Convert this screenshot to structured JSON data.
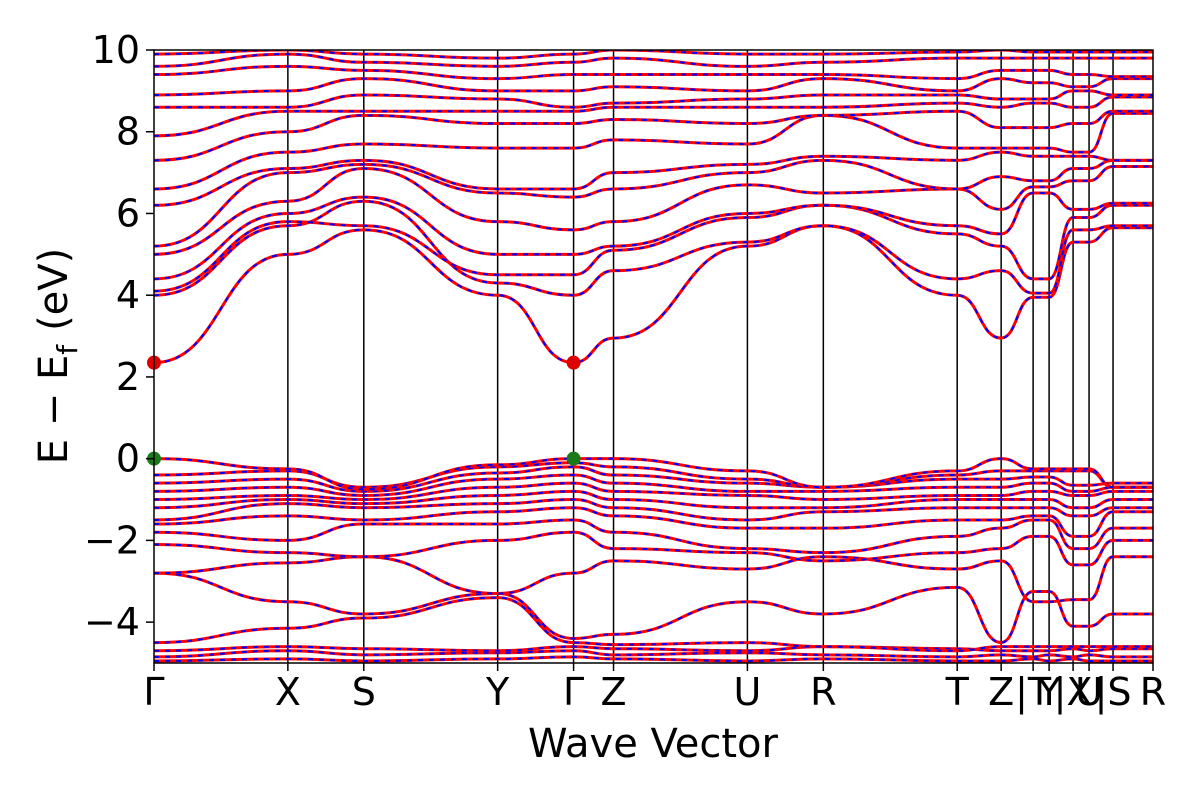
{
  "chart_data": {
    "type": "line",
    "xlabel": "Wave Vector",
    "ylabel_main": "E − E",
    "ylabel_sub": "f",
    "ylabel_unit": "(eV)",
    "ylim": [
      -5,
      10
    ],
    "yticks": [
      -4,
      -2,
      0,
      2,
      4,
      6,
      8,
      10
    ],
    "ytick_labels": [
      "−4",
      "−2",
      "0",
      "2",
      "4",
      "6",
      "8",
      "10"
    ],
    "xlim": [
      0,
      1
    ],
    "kpoints": [
      {
        "label": "Γ",
        "x": 0.0
      },
      {
        "label": "X",
        "x": 0.134
      },
      {
        "label": "S",
        "x": 0.21
      },
      {
        "label": "Y",
        "x": 0.344
      },
      {
        "label": "Γ",
        "x": 0.42
      },
      {
        "label": "Z",
        "x": 0.46
      },
      {
        "label": "U",
        "x": 0.594
      },
      {
        "label": "R",
        "x": 0.67
      },
      {
        "label": "T",
        "x": 0.804
      },
      {
        "label": "Z",
        "x": 0.848
      },
      {
        "label": "|T",
        "x": 0.88
      },
      {
        "label": "Y",
        "x": 0.896
      },
      {
        "label": "|X",
        "x": 0.92
      },
      {
        "label": "U",
        "x": 0.936
      },
      {
        "label": "|S",
        "x": 0.96
      },
      {
        "label": "R",
        "x": 1.0
      }
    ],
    "series_colors": {
      "spin_up": "#ff0000",
      "spin_down": "#0000ff"
    },
    "marker_color_cbm": "#dd0000",
    "marker_color_vbm": "#1a7a1a",
    "markers": [
      {
        "kind": "cbm",
        "x": 0.0,
        "y": 2.35
      },
      {
        "kind": "cbm",
        "x": 0.42,
        "y": 2.35
      },
      {
        "kind": "vbm",
        "x": 0.0,
        "y": 0.0
      },
      {
        "kind": "vbm",
        "x": 0.42,
        "y": 0.0
      }
    ],
    "bands": [
      [
        -4.95,
        -4.9,
        -4.95,
        -4.9,
        -4.85,
        -4.9,
        -4.95,
        -4.9,
        -4.95,
        -4.95,
        -4.9,
        -4.95,
        -4.9,
        -4.95,
        -4.95,
        -4.95
      ],
      [
        -4.85,
        -4.7,
        -4.8,
        -4.75,
        -4.7,
        -4.8,
        -4.75,
        -4.8,
        -4.85,
        -4.8,
        -4.85,
        -4.8,
        -4.85,
        -4.8,
        -4.85,
        -4.85
      ],
      [
        -4.7,
        -4.6,
        -4.65,
        -4.7,
        -4.6,
        -4.65,
        -4.7,
        -4.6,
        -4.65,
        -4.7,
        -4.7,
        -4.7,
        -4.65,
        -4.7,
        -4.65,
        -4.65
      ],
      [
        -4.5,
        -4.15,
        -3.9,
        -3.4,
        -4.5,
        -4.55,
        -4.5,
        -4.6,
        -4.7,
        -4.6,
        -4.6,
        -4.6,
        -4.6,
        -4.6,
        -4.6,
        -4.6
      ],
      [
        -2.8,
        -3.5,
        -3.8,
        -3.3,
        -4.4,
        -4.3,
        -3.5,
        -3.8,
        -3.15,
        -4.5,
        -3.25,
        -3.25,
        -4.1,
        -4.1,
        -3.8,
        -3.8
      ],
      [
        -2.8,
        -2.55,
        -2.4,
        -3.3,
        -2.8,
        -2.5,
        -2.7,
        -2.4,
        -2.7,
        -2.5,
        -3.5,
        -3.5,
        -3.45,
        -3.45,
        -2.4,
        -2.4
      ],
      [
        -2.1,
        -2.3,
        -2.4,
        -2.0,
        -1.8,
        -2.2,
        -2.3,
        -2.5,
        -2.3,
        -2.2,
        -1.9,
        -1.9,
        -2.6,
        -2.6,
        -2.0,
        -2.0
      ],
      [
        -1.8,
        -2.0,
        -1.6,
        -1.6,
        -1.5,
        -1.8,
        -2.2,
        -2.3,
        -1.9,
        -1.7,
        -1.5,
        -1.5,
        -2.2,
        -2.2,
        -1.7,
        -1.7
      ],
      [
        -1.6,
        -1.4,
        -1.5,
        -1.3,
        -1.2,
        -1.4,
        -1.7,
        -1.7,
        -1.5,
        -1.5,
        -1.4,
        -1.4,
        -1.9,
        -1.9,
        -1.3,
        -1.3
      ],
      [
        -1.5,
        -1.1,
        -1.2,
        -1.1,
        -1.0,
        -1.2,
        -1.5,
        -1.3,
        -1.2,
        -1.2,
        -1.2,
        -1.2,
        -1.4,
        -1.4,
        -1.2,
        -1.2
      ],
      [
        -1.2,
        -1.0,
        -1.1,
        -0.9,
        -0.8,
        -1.0,
        -1.2,
        -1.2,
        -1.0,
        -1.0,
        -1.0,
        -1.0,
        -1.2,
        -1.2,
        -1.0,
        -1.0
      ],
      [
        -1.0,
        -0.9,
        -1.0,
        -0.7,
        -0.6,
        -0.8,
        -0.9,
        -1.0,
        -0.9,
        -0.9,
        -0.8,
        -0.8,
        -0.9,
        -0.9,
        -0.8,
        -0.8
      ],
      [
        -0.8,
        -0.7,
        -0.9,
        -0.5,
        -0.4,
        -0.6,
        -0.8,
        -0.8,
        -0.7,
        -0.7,
        -0.6,
        -0.6,
        -0.8,
        -0.8,
        -0.7,
        -0.7
      ],
      [
        -0.6,
        -0.5,
        -0.8,
        -0.35,
        -0.2,
        -0.4,
        -0.6,
        -0.7,
        -0.5,
        -0.5,
        -0.45,
        -0.45,
        -0.65,
        -0.65,
        -0.6,
        -0.6
      ],
      [
        -0.4,
        -0.3,
        -0.7,
        -0.2,
        -0.1,
        -0.2,
        -0.5,
        -0.7,
        -0.4,
        -0.3,
        -0.3,
        -0.3,
        -0.3,
        -0.3,
        -0.7,
        -0.7
      ],
      [
        0.0,
        -0.25,
        -0.75,
        -0.15,
        0.0,
        0.0,
        -0.3,
        -0.7,
        -0.3,
        0.0,
        -0.25,
        -0.25,
        -0.25,
        -0.25,
        -0.7,
        -0.7
      ],
      [
        2.35,
        5.0,
        5.6,
        4.0,
        2.35,
        2.95,
        5.2,
        5.7,
        4.0,
        2.95,
        3.95,
        3.95,
        5.3,
        5.3,
        5.65,
        5.65
      ],
      [
        4.0,
        5.7,
        6.3,
        4.3,
        4.0,
        4.6,
        5.3,
        5.7,
        4.4,
        4.6,
        4.05,
        4.05,
        5.6,
        5.6,
        5.7,
        5.7
      ],
      [
        4.1,
        5.8,
        5.7,
        4.5,
        4.5,
        5.1,
        5.9,
        6.2,
        5.5,
        5.2,
        4.4,
        4.4,
        5.9,
        5.9,
        6.2,
        6.2
      ],
      [
        4.4,
        6.0,
        6.4,
        5.0,
        5.0,
        5.2,
        6.0,
        6.2,
        5.7,
        5.5,
        6.5,
        6.5,
        6.1,
        6.1,
        6.25,
        6.25
      ],
      [
        5.0,
        6.3,
        7.1,
        5.8,
        5.6,
        5.8,
        6.7,
        6.5,
        6.6,
        6.1,
        6.65,
        6.65,
        6.8,
        6.8,
        7.15,
        7.15
      ],
      [
        5.2,
        7.0,
        7.2,
        6.5,
        6.4,
        6.6,
        7.0,
        7.3,
        6.6,
        6.9,
        6.8,
        6.8,
        7.1,
        7.1,
        7.3,
        7.3
      ],
      [
        6.2,
        7.1,
        7.3,
        6.6,
        6.6,
        7.0,
        7.2,
        7.4,
        7.3,
        7.5,
        7.4,
        7.4,
        7.4,
        7.4,
        7.3,
        7.3
      ],
      [
        6.6,
        7.5,
        7.7,
        7.6,
        7.6,
        7.8,
        7.7,
        8.4,
        7.6,
        7.6,
        7.6,
        7.6,
        7.5,
        7.5,
        8.45,
        8.45
      ],
      [
        7.3,
        8.0,
        8.4,
        8.2,
        8.2,
        8.3,
        8.2,
        8.4,
        8.5,
        8.1,
        8.1,
        8.1,
        8.2,
        8.2,
        8.5,
        8.5
      ],
      [
        7.9,
        8.5,
        8.5,
        8.5,
        8.5,
        8.6,
        8.6,
        8.6,
        8.7,
        8.6,
        8.7,
        8.7,
        8.6,
        8.6,
        8.85,
        8.85
      ],
      [
        8.6,
        8.6,
        8.9,
        8.8,
        8.6,
        8.7,
        8.8,
        8.9,
        8.9,
        8.8,
        8.8,
        8.8,
        9.0,
        9.0,
        8.9,
        8.9
      ],
      [
        8.9,
        9.0,
        9.3,
        9.0,
        9.0,
        9.1,
        9.0,
        9.3,
        9.0,
        9.3,
        9.2,
        9.2,
        9.1,
        9.1,
        9.3,
        9.3
      ],
      [
        9.4,
        9.6,
        9.5,
        9.3,
        9.4,
        9.4,
        9.4,
        9.4,
        9.3,
        9.5,
        9.5,
        9.5,
        9.4,
        9.4,
        9.35,
        9.35
      ],
      [
        9.6,
        9.9,
        9.7,
        9.6,
        9.7,
        9.8,
        9.6,
        9.7,
        9.8,
        9.8,
        9.8,
        9.8,
        9.8,
        9.8,
        9.8,
        9.8
      ],
      [
        9.9,
        10.0,
        9.9,
        9.8,
        9.9,
        10.0,
        9.9,
        9.9,
        9.95,
        10.0,
        9.95,
        9.95,
        9.95,
        9.95,
        9.95,
        9.95
      ]
    ]
  }
}
